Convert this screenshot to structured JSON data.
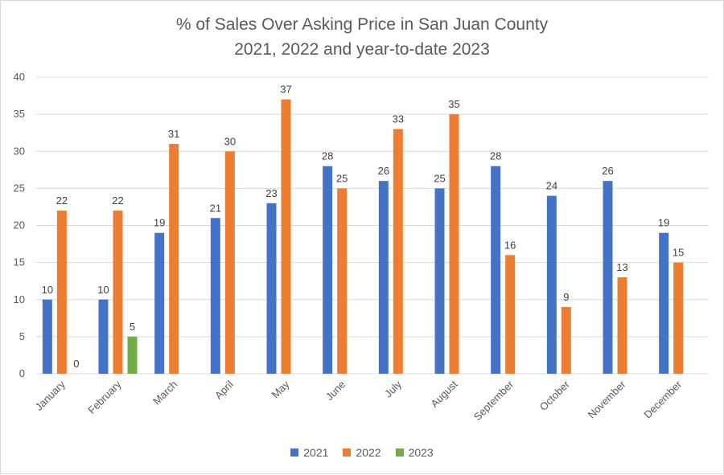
{
  "chart_data": {
    "type": "bar",
    "title_line1": "% of Sales Over Asking Price in San Juan County",
    "title_line2": "2021, 2022 and year-to-date 2023",
    "categories": [
      "January",
      "February",
      "March",
      "April",
      "May",
      "June",
      "July",
      "August",
      "September",
      "October",
      "November",
      "December"
    ],
    "series": [
      {
        "name": "2021",
        "color": "#4472C4",
        "values": [
          10,
          10,
          19,
          21,
          23,
          28,
          26,
          25,
          28,
          24,
          26,
          19
        ]
      },
      {
        "name": "2022",
        "color": "#ED7D31",
        "values": [
          22,
          22,
          31,
          30,
          37,
          25,
          33,
          35,
          16,
          9,
          13,
          15
        ]
      },
      {
        "name": "2023",
        "color": "#70AD47",
        "values": [
          0,
          5,
          null,
          null,
          null,
          null,
          null,
          null,
          null,
          null,
          null,
          null
        ]
      }
    ],
    "ylim": [
      0,
      40
    ],
    "yticks": [
      0,
      5,
      10,
      15,
      20,
      25,
      30,
      35,
      40
    ],
    "grid": true,
    "legend_position": "bottom"
  }
}
